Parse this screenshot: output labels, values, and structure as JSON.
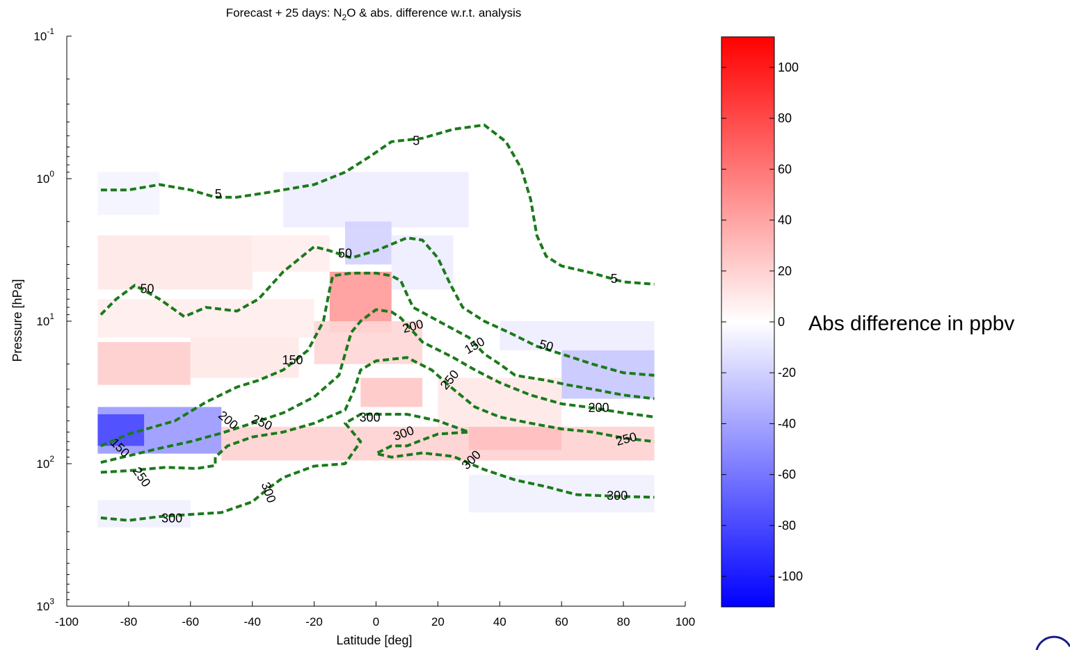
{
  "chart_data": {
    "type": "heatmap",
    "title_parts": {
      "before": "Forecast + 25 days: N",
      "sub": "2",
      "after": "O & abs. difference w.r.t. analysis"
    },
    "xlabel": "Latitude [deg]",
    "ylabel": "Pressure [hPa]",
    "x_scale": "linear",
    "y_scale": "log",
    "y_direction": "reversed",
    "xlim": [
      -100,
      100
    ],
    "ylim": [
      0.1,
      1000
    ],
    "x_ticks": [
      -100,
      -80,
      -60,
      -40,
      -20,
      0,
      20,
      40,
      60,
      80,
      100
    ],
    "y_ticks": [
      {
        "value": 0.1,
        "base": "10",
        "exp": "-1"
      },
      {
        "value": 1,
        "base": "10",
        "exp": "0"
      },
      {
        "value": 10,
        "base": "10",
        "exp": "1"
      },
      {
        "value": 100,
        "base": "10",
        "exp": "2"
      },
      {
        "value": 1000,
        "base": "10",
        "exp": "3"
      }
    ],
    "grid": false,
    "colorbar": {
      "title": "Abs difference in ppbv",
      "range": [
        -112,
        112
      ],
      "ticks": [
        100,
        80,
        60,
        40,
        20,
        0,
        -20,
        -40,
        -60,
        -80,
        -100
      ],
      "colormap": [
        "#0000ff",
        "#ffffff",
        "#ff0000"
      ]
    },
    "contour_color": "#1a7a1a",
    "heatmap_regions": [
      {
        "lat": [
          -90,
          -50
        ],
        "p": [
          40,
          85
        ],
        "value": -45
      },
      {
        "lat": [
          -90,
          -75
        ],
        "p": [
          45,
          75
        ],
        "value": -80
      },
      {
        "lat": [
          -90,
          -70
        ],
        "p": [
          0.9,
          1.8
        ],
        "value": -5
      },
      {
        "lat": [
          -30,
          30
        ],
        "p": [
          0.9,
          2.2
        ],
        "value": -8
      },
      {
        "lat": [
          -10,
          5
        ],
        "p": [
          2.0,
          4.0
        ],
        "value": -20
      },
      {
        "lat": [
          5,
          25
        ],
        "p": [
          2.5,
          6.0
        ],
        "value": -8
      },
      {
        "lat": [
          -90,
          -40
        ],
        "p": [
          2.5,
          6.0
        ],
        "value": 10
      },
      {
        "lat": [
          -40,
          -15
        ],
        "p": [
          2.5,
          4.5
        ],
        "value": 8
      },
      {
        "lat": [
          -90,
          -20
        ],
        "p": [
          7,
          13
        ],
        "value": 8
      },
      {
        "lat": [
          -90,
          -60
        ],
        "p": [
          14,
          28
        ],
        "value": 22
      },
      {
        "lat": [
          -60,
          -25
        ],
        "p": [
          13,
          25
        ],
        "value": 10
      },
      {
        "lat": [
          -15,
          5
        ],
        "p": [
          4.5,
          12
        ],
        "value": 45
      },
      {
        "lat": [
          -20,
          15
        ],
        "p": [
          10,
          20
        ],
        "value": 18
      },
      {
        "lat": [
          -5,
          15
        ],
        "p": [
          25,
          40
        ],
        "value": 25
      },
      {
        "lat": [
          -50,
          90
        ],
        "p": [
          55,
          95
        ],
        "value": 20
      },
      {
        "lat": [
          30,
          60
        ],
        "p": [
          55,
          80
        ],
        "value": 28
      },
      {
        "lat": [
          60,
          90
        ],
        "p": [
          16,
          35
        ],
        "value": -25
      },
      {
        "lat": [
          40,
          90
        ],
        "p": [
          10,
          16
        ],
        "value": -8
      },
      {
        "lat": [
          20,
          60
        ],
        "p": [
          25,
          55
        ],
        "value": 10
      },
      {
        "lat": [
          30,
          90
        ],
        "p": [
          120,
          220
        ],
        "value": -6
      },
      {
        "lat": [
          -90,
          -60
        ],
        "p": [
          180,
          280
        ],
        "value": -6
      }
    ],
    "contours": [
      {
        "level": "5",
        "points": [
          [
            -89,
            1.2
          ],
          [
            -80,
            1.2
          ],
          [
            -70,
            1.1
          ],
          [
            -60,
            1.2
          ],
          [
            -52,
            1.35
          ],
          [
            -45,
            1.35
          ],
          [
            -35,
            1.25
          ],
          [
            -20,
            1.1
          ],
          [
            -10,
            0.9
          ],
          [
            -2,
            0.7
          ],
          [
            5,
            0.55
          ],
          [
            15,
            0.52
          ],
          [
            25,
            0.45
          ],
          [
            35,
            0.42
          ],
          [
            42,
            0.55
          ],
          [
            47,
            0.85
          ],
          [
            50,
            1.4
          ],
          [
            52,
            2.5
          ],
          [
            55,
            3.5
          ],
          [
            60,
            4.1
          ],
          [
            70,
            4.6
          ],
          [
            80,
            5.3
          ],
          [
            90,
            5.5
          ]
        ],
        "labels": [
          {
            "text": "5",
            "lat": -51,
            "p": 1.3,
            "rot": 0
          },
          {
            "text": "5",
            "lat": 13,
            "p": 0.55,
            "rot": 0
          },
          {
            "text": "5",
            "lat": 77,
            "p": 5.1,
            "rot": 0
          }
        ]
      },
      {
        "level": "50",
        "points": [
          [
            -89,
            9
          ],
          [
            -84,
            7
          ],
          [
            -78,
            5.6
          ],
          [
            -70,
            7
          ],
          [
            -62,
            9.3
          ],
          [
            -55,
            8
          ],
          [
            -45,
            8.5
          ],
          [
            -38,
            7
          ],
          [
            -30,
            4.5
          ],
          [
            -20,
            3.0
          ],
          [
            -15,
            3.2
          ],
          [
            -8,
            3.6
          ],
          [
            0,
            3.2
          ],
          [
            10,
            2.6
          ],
          [
            15,
            2.7
          ],
          [
            20,
            3.6
          ],
          [
            24,
            5.5
          ],
          [
            28,
            8
          ],
          [
            35,
            10
          ],
          [
            43,
            12
          ],
          [
            52,
            15
          ],
          [
            60,
            17
          ],
          [
            70,
            20
          ],
          [
            80,
            23
          ],
          [
            90,
            24
          ]
        ],
        "labels": [
          {
            "text": "50",
            "lat": -74,
            "p": 6.0,
            "rot": 0
          },
          {
            "text": "50",
            "lat": -10,
            "p": 3.4,
            "rot": 0
          },
          {
            "text": "50",
            "lat": 55,
            "p": 15,
            "rot": 15
          }
        ]
      },
      {
        "level": "150",
        "points": [
          [
            -89,
            75
          ],
          [
            -80,
            62
          ],
          [
            -65,
            50
          ],
          [
            -55,
            37
          ],
          [
            -45,
            29
          ],
          [
            -38,
            26
          ],
          [
            -30,
            22
          ],
          [
            -22,
            16
          ],
          [
            -17,
            10
          ],
          [
            -15,
            6
          ],
          [
            -14,
            4.8
          ],
          [
            -8,
            4.6
          ],
          [
            0,
            4.6
          ],
          [
            5,
            4.8
          ],
          [
            8,
            5.2
          ],
          [
            10,
            6.5
          ],
          [
            12,
            8
          ],
          [
            22,
            10.5
          ],
          [
            30,
            13
          ],
          [
            35,
            17
          ],
          [
            40,
            20
          ],
          [
            45,
            24
          ],
          [
            55,
            26
          ],
          [
            62,
            28
          ],
          [
            70,
            30
          ],
          [
            80,
            33
          ],
          [
            90,
            35
          ]
        ],
        "labels": [
          {
            "text": "150",
            "lat": -83,
            "p": 78,
            "rot": 45
          },
          {
            "text": "150",
            "lat": -27,
            "p": 19,
            "rot": 0
          },
          {
            "text": "150",
            "lat": 32,
            "p": 15,
            "rot": -30
          }
        ]
      },
      {
        "level": "200",
        "points": [
          [
            -89,
            98
          ],
          [
            -80,
            88
          ],
          [
            -70,
            78
          ],
          [
            -60,
            70
          ],
          [
            -50,
            61
          ],
          [
            -40,
            52
          ],
          [
            -30,
            44
          ],
          [
            -20,
            34
          ],
          [
            -12,
            24
          ],
          [
            -8,
            12
          ],
          [
            -5,
            10
          ],
          [
            0,
            8.3
          ],
          [
            5,
            8.6
          ],
          [
            8,
            9.5
          ],
          [
            15,
            14
          ],
          [
            25,
            18
          ],
          [
            32,
            22
          ],
          [
            40,
            27
          ],
          [
            50,
            33
          ],
          [
            60,
            38
          ],
          [
            68,
            40
          ],
          [
            80,
            44
          ],
          [
            90,
            47
          ]
        ],
        "labels": [
          {
            "text": "200",
            "lat": 12,
            "p": 11,
            "rot": -15
          },
          {
            "text": "200",
            "lat": -48,
            "p": 50,
            "rot": 40
          },
          {
            "text": "200",
            "lat": 72,
            "p": 41,
            "rot": 0
          }
        ]
      },
      {
        "level": "250",
        "points": [
          [
            -89,
            115
          ],
          [
            -80,
            112
          ],
          [
            -68,
            106
          ],
          [
            -58,
            108
          ],
          [
            -52,
            103
          ],
          [
            -52,
            90
          ],
          [
            -48,
            75
          ],
          [
            -40,
            65
          ],
          [
            -30,
            60
          ],
          [
            -20,
            52
          ],
          [
            -10,
            42
          ],
          [
            -7,
            30
          ],
          [
            -5,
            22
          ],
          [
            0,
            19
          ],
          [
            10,
            18
          ],
          [
            18,
            22
          ],
          [
            25,
            30
          ],
          [
            32,
            40
          ],
          [
            40,
            47
          ],
          [
            50,
            52
          ],
          [
            60,
            57
          ],
          [
            70,
            60
          ],
          [
            80,
            66
          ],
          [
            90,
            70
          ]
        ],
        "labels": [
          {
            "text": "250",
            "lat": -76,
            "p": 125,
            "rot": 55
          },
          {
            "text": "250",
            "lat": -37,
            "p": 52,
            "rot": 25
          },
          {
            "text": "250",
            "lat": 24,
            "p": 26,
            "rot": -50
          },
          {
            "text": "250",
            "lat": 81,
            "p": 68,
            "rot": -15
          }
        ]
      },
      {
        "level": "300",
        "points": [
          [
            -89,
            240
          ],
          [
            -80,
            250
          ],
          [
            -70,
            235
          ],
          [
            -60,
            227
          ],
          [
            -50,
            220
          ],
          [
            -40,
            185
          ],
          [
            -35,
            150
          ],
          [
            -30,
            125
          ],
          [
            -20,
            104
          ],
          [
            -10,
            100
          ],
          [
            -5,
            70
          ],
          [
            -10,
            52
          ],
          [
            -5,
            45
          ],
          [
            0,
            45
          ],
          [
            10,
            45
          ],
          [
            20,
            50
          ],
          [
            30,
            60
          ],
          [
            20,
            62
          ],
          [
            15,
            68
          ],
          [
            10,
            75
          ],
          [
            5,
            75
          ],
          [
            0,
            85
          ],
          [
            5,
            90
          ],
          [
            15,
            84
          ],
          [
            25,
            89
          ],
          [
            35,
            110
          ],
          [
            45,
            130
          ],
          [
            55,
            145
          ],
          [
            65,
            165
          ],
          [
            80,
            170
          ],
          [
            90,
            172
          ]
        ],
        "labels": [
          {
            "text": "300",
            "lat": -66,
            "p": 245,
            "rot": 0
          },
          {
            "text": "300",
            "lat": -35,
            "p": 160,
            "rot": 70
          },
          {
            "text": "300",
            "lat": -2,
            "p": 48,
            "rot": 0
          },
          {
            "text": "300",
            "lat": 9,
            "p": 62,
            "rot": -20
          },
          {
            "text": "300",
            "lat": 31,
            "p": 95,
            "rot": -45
          },
          {
            "text": "300",
            "lat": 78,
            "p": 170,
            "rot": 0
          }
        ]
      }
    ]
  }
}
